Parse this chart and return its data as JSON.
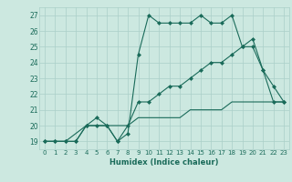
{
  "title": "",
  "xlabel": "Humidex (Indice chaleur)",
  "bg_color": "#cce8e0",
  "grid_color": "#aacfc8",
  "line_color": "#1a6b5a",
  "xlim": [
    -0.5,
    23.5
  ],
  "ylim": [
    18.5,
    27.5
  ],
  "xticks": [
    0,
    1,
    2,
    3,
    4,
    5,
    6,
    7,
    8,
    9,
    10,
    11,
    12,
    13,
    14,
    15,
    16,
    17,
    18,
    19,
    20,
    21,
    22,
    23
  ],
  "yticks": [
    19,
    20,
    21,
    22,
    23,
    24,
    25,
    26,
    27
  ],
  "line1_x": [
    0,
    1,
    2,
    3,
    4,
    5,
    6,
    7,
    8,
    9,
    10,
    11,
    12,
    13,
    14,
    15,
    16,
    17,
    18,
    19,
    20,
    21,
    22,
    23
  ],
  "line1_y": [
    19,
    19,
    19,
    19,
    20,
    20.5,
    20,
    19,
    19.5,
    24.5,
    27,
    26.5,
    26.5,
    26.5,
    26.5,
    27,
    26.5,
    26.5,
    27,
    25,
    25.5,
    23.5,
    22.5,
    21.5
  ],
  "line2_x": [
    0,
    1,
    2,
    3,
    4,
    5,
    6,
    7,
    8,
    9,
    10,
    11,
    12,
    13,
    14,
    15,
    16,
    17,
    18,
    19,
    20,
    21,
    22,
    23
  ],
  "line2_y": [
    19,
    19,
    19,
    19,
    20,
    20,
    20,
    19,
    20,
    21.5,
    21.5,
    22,
    22.5,
    22.5,
    23,
    23.5,
    24,
    24,
    24.5,
    25,
    25,
    23.5,
    21.5,
    21.5
  ],
  "line3_x": [
    0,
    1,
    2,
    3,
    4,
    5,
    6,
    7,
    8,
    9,
    10,
    11,
    12,
    13,
    14,
    15,
    16,
    17,
    18,
    19,
    20,
    21,
    22,
    23
  ],
  "line3_y": [
    19,
    19,
    19,
    19.5,
    20,
    20,
    20,
    20,
    20,
    20.5,
    20.5,
    20.5,
    20.5,
    20.5,
    21,
    21,
    21,
    21,
    21.5,
    21.5,
    21.5,
    21.5,
    21.5,
    21.5
  ]
}
